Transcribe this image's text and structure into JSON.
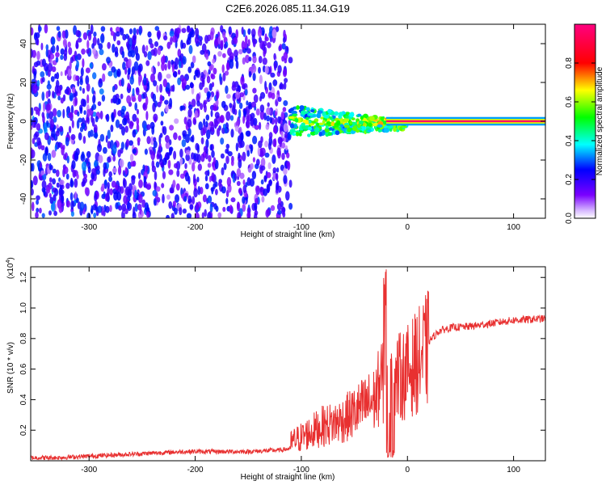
{
  "title": "C2E6.2026.085.11.34.G19",
  "colors": {
    "line": "#e83030",
    "axis": "#000000",
    "background": "#ffffff"
  },
  "chart_data": [
    {
      "type": "heatmap",
      "name": "spectrogram",
      "xlabel": "Height of straight line (km)",
      "ylabel": "Frequency (Hz)",
      "xlim": [
        -355,
        130
      ],
      "ylim": [
        -50,
        50
      ],
      "xticks": [
        -300,
        -200,
        -100,
        0,
        100
      ],
      "yticks": [
        -40,
        -20,
        0,
        20,
        40
      ],
      "xtick_labels": [
        "-300",
        "-200",
        "-100",
        "0",
        "100"
      ],
      "ytick_labels": [
        "-40",
        "-20",
        "0",
        "20",
        "40"
      ],
      "colorbar": {
        "label": "Normalized spectral amplitude",
        "range": [
          0,
          1
        ],
        "ticks": [
          0.0,
          0.2,
          0.4,
          0.6,
          0.8
        ],
        "tick_labels": [
          "0.0",
          "0.2",
          "0.4",
          "0.6",
          "0.8"
        ],
        "colormap": [
          "#ffffff",
          "#7a00ff",
          "#0000ff",
          "#00ffff",
          "#00ff00",
          "#ffff00",
          "#ff0000",
          "#ff0080"
        ]
      },
      "regions": [
        {
          "x": [
            -355,
            -110
          ],
          "y": [
            -50,
            48
          ],
          "amplitude": 0.1,
          "note": "broadband noise"
        },
        {
          "x": [
            -110,
            -20
          ],
          "y": [
            -8,
            8
          ],
          "amplitude": 0.4,
          "note": "converging signal"
        },
        {
          "x": [
            -20,
            130
          ],
          "y": [
            -1,
            1
          ],
          "amplitude": 0.95,
          "note": "carrier line"
        }
      ]
    },
    {
      "type": "line",
      "name": "snr",
      "xlabel": "Height of straight line (km)",
      "ylabel": "SNR (10 * v/v)",
      "y_multiplier": "(x10",
      "y_exponent": "4",
      "y_multiplier_close": ")",
      "xlim": [
        -355,
        130
      ],
      "ylim": [
        0,
        1.27
      ],
      "xticks": [
        -300,
        -200,
        -100,
        0,
        100
      ],
      "yticks": [
        0.2,
        0.4,
        0.6,
        0.8,
        1.0,
        1.2
      ],
      "xtick_labels": [
        "-300",
        "-200",
        "-100",
        "0",
        "100"
      ],
      "ytick_labels": [
        "0.2",
        "0.4",
        "0.6",
        "0.8",
        "1.0",
        "1.2"
      ],
      "series": [
        {
          "name": "SNR",
          "color": "#e83030",
          "x": [
            -355,
            -330,
            -300,
            -270,
            -240,
            -210,
            -180,
            -150,
            -120,
            -110,
            -100,
            -90,
            -80,
            -70,
            -60,
            -50,
            -40,
            -30,
            -25,
            -20,
            -15,
            -10,
            0,
            10,
            20,
            30,
            40,
            60,
            80,
            100,
            130
          ],
          "y": [
            0.02,
            0.02,
            0.03,
            0.04,
            0.05,
            0.06,
            0.06,
            0.06,
            0.07,
            0.08,
            0.12,
            0.16,
            0.2,
            0.22,
            0.25,
            0.3,
            0.35,
            0.4,
            0.55,
            0.45,
            0.5,
            0.55,
            0.6,
            0.68,
            0.78,
            0.85,
            0.87,
            0.88,
            0.9,
            0.92,
            0.93
          ]
        }
      ]
    }
  ]
}
